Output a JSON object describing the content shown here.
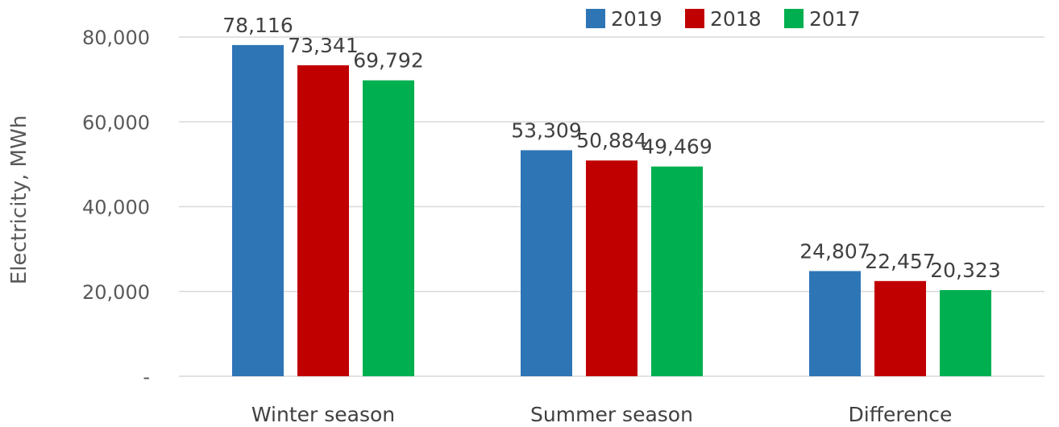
{
  "chart_data": {
    "type": "bar",
    "ylabel": "Electricity, MWh",
    "categories": [
      "Winter season",
      "Summer season",
      "Difference"
    ],
    "series": [
      {
        "name": "2019",
        "color": "#2E75B6",
        "values": [
          78116,
          53309,
          24807
        ],
        "labels": [
          "78,116",
          "53,309",
          "24,807"
        ]
      },
      {
        "name": "2018",
        "color": "#C00000",
        "values": [
          73341,
          50884,
          22457
        ],
        "labels": [
          "73,341",
          "50,884",
          "22,457"
        ]
      },
      {
        "name": "2017",
        "color": "#00B050",
        "values": [
          69792,
          49469,
          20323
        ],
        "labels": [
          "69,792",
          "49,469",
          "20,323"
        ]
      }
    ],
    "ylim": [
      0,
      80000
    ],
    "yticks": [
      0,
      20000,
      40000,
      60000,
      80000
    ],
    "ytick_labels": [
      "-",
      "20,000",
      "40,000",
      "60,000",
      "80,000"
    ],
    "grid": true,
    "legend": "top"
  }
}
